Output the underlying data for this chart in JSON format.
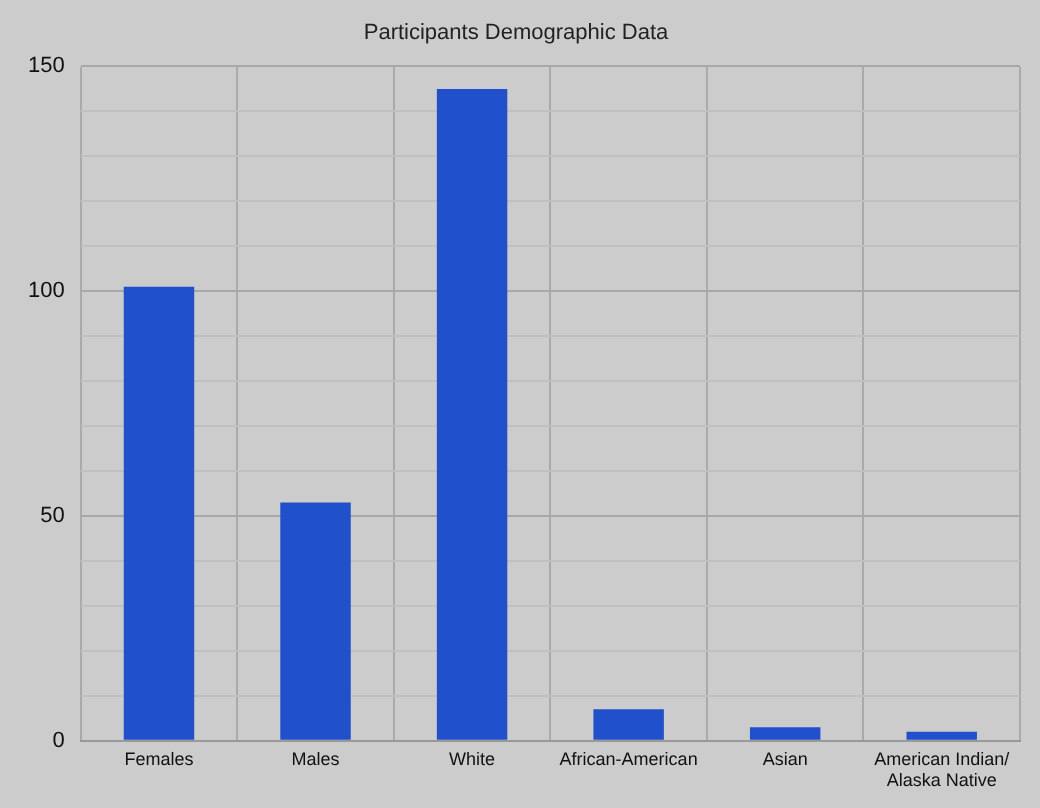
{
  "chart_data": {
    "type": "bar",
    "title": "Participants Demographic Data",
    "categories": [
      "Females",
      "Males",
      "White",
      "African-American",
      "Asian",
      [
        "American Indian/",
        "Alaska Native"
      ]
    ],
    "values": [
      101,
      53,
      145,
      7,
      3,
      2
    ],
    "color": "#2050cc",
    "ylim": [
      0,
      150
    ],
    "yticks": [
      0,
      {
        "value": 10,
        "label": null
      },
      {
        "value": 20,
        "label": null
      },
      {
        "value": 30,
        "label": null
      },
      {
        "value": 40,
        "label": null
      },
      50,
      {
        "value": 60,
        "label": null
      },
      {
        "value": 70,
        "label": null
      },
      {
        "value": 80,
        "label": null
      },
      {
        "value": 90,
        "label": null
      },
      100,
      {
        "value": 110,
        "label": null
      },
      {
        "value": 120,
        "label": null
      },
      {
        "value": 130,
        "label": null
      },
      {
        "value": 140,
        "label": null
      },
      150
    ],
    "grid": true,
    "legend": false
  }
}
